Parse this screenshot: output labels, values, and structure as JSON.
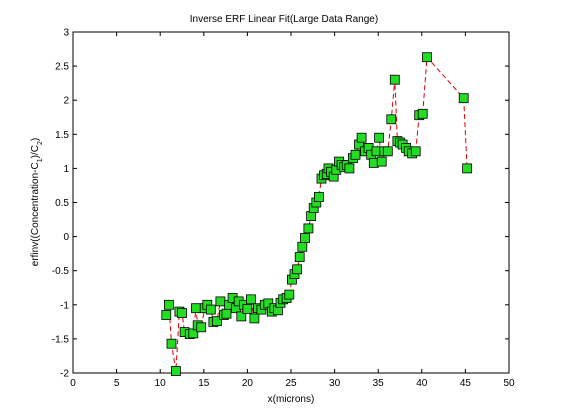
{
  "chart_data": {
    "type": "scatter",
    "title": "Inverse ERF Linear Fit(Large Data Range)",
    "xlabel": "x(microns)",
    "ylabel": "erfinv((Concentration-C",
    "ylabel_sub1": "1",
    "ylabel_mid": ")/C",
    "ylabel_sub2": "2",
    "ylabel_end": ")",
    "xlim": [
      0,
      50
    ],
    "ylim": [
      -2,
      3
    ],
    "xticks": [
      0,
      5,
      10,
      15,
      20,
      25,
      30,
      35,
      40,
      45,
      50
    ],
    "yticks": [
      -2,
      -1.5,
      -1,
      -0.5,
      0,
      0.5,
      1,
      1.5,
      2,
      2.5,
      3
    ],
    "ytick_labels": [
      "-2",
      "-1.5",
      "-1",
      "-0.5",
      "0",
      "0.5",
      "1",
      "1.5",
      "2",
      "2.5",
      "3"
    ],
    "grid": false,
    "colors": {
      "marker_fill": "#22dd22",
      "marker_edge": "#000000",
      "line": "#dd0000"
    },
    "series": [
      {
        "marker": "square",
        "line": "dashed",
        "points": [
          [
            10.7,
            -1.15
          ],
          [
            11.0,
            -1.0
          ],
          [
            11.3,
            -1.57
          ],
          [
            11.8,
            -1.97
          ],
          [
            12.2,
            -1.1
          ],
          [
            12.5,
            -1.12
          ],
          [
            12.8,
            -1.4
          ],
          [
            13.4,
            -1.43
          ],
          [
            13.8,
            -1.42
          ],
          [
            14.1,
            -1.05
          ],
          [
            14.3,
            -1.3
          ],
          [
            14.7,
            -1.33
          ],
          [
            15.1,
            -1.05
          ],
          [
            15.4,
            -1.0
          ],
          [
            15.8,
            -1.07
          ],
          [
            16.1,
            -1.25
          ],
          [
            16.5,
            -1.24
          ],
          [
            16.9,
            -0.95
          ],
          [
            17.3,
            -1.15
          ],
          [
            17.6,
            -1.13
          ],
          [
            17.9,
            -1.0
          ],
          [
            18.3,
            -0.9
          ],
          [
            18.7,
            -1.05
          ],
          [
            19.0,
            -0.95
          ],
          [
            19.3,
            -1.17
          ],
          [
            19.6,
            -1.0
          ],
          [
            20.0,
            -1.06
          ],
          [
            20.4,
            -0.92
          ],
          [
            20.8,
            -1.2
          ],
          [
            21.2,
            -1.05
          ],
          [
            21.6,
            -1.07
          ],
          [
            22.0,
            -1.0
          ],
          [
            22.4,
            -0.98
          ],
          [
            22.8,
            -1.1
          ],
          [
            23.1,
            -1.05
          ],
          [
            23.5,
            -1.08
          ],
          [
            23.8,
            -0.97
          ],
          [
            24.1,
            -0.92
          ],
          [
            24.5,
            -0.9
          ],
          [
            24.8,
            -0.85
          ],
          [
            25.1,
            -0.63
          ],
          [
            25.4,
            -0.55
          ],
          [
            25.7,
            -0.48
          ],
          [
            26.0,
            -0.3
          ],
          [
            26.3,
            -0.15
          ],
          [
            26.6,
            -0.02
          ],
          [
            27.0,
            0.12
          ],
          [
            27.3,
            0.3
          ],
          [
            27.6,
            0.42
          ],
          [
            27.9,
            0.5
          ],
          [
            28.2,
            0.58
          ],
          [
            28.5,
            0.85
          ],
          [
            28.8,
            0.9
          ],
          [
            29.1,
            0.92
          ],
          [
            29.3,
            1.0
          ],
          [
            29.6,
            0.95
          ],
          [
            29.9,
            0.88
          ],
          [
            30.2,
            0.98
          ],
          [
            30.5,
            1.1
          ],
          [
            30.8,
            1.05
          ],
          [
            31.1,
            1.02
          ],
          [
            31.4,
            1.05
          ],
          [
            31.7,
            1.0
          ],
          [
            32.1,
            1.15
          ],
          [
            32.4,
            1.2
          ],
          [
            32.8,
            1.35
          ],
          [
            33.1,
            1.45
          ],
          [
            33.5,
            1.25
          ],
          [
            33.9,
            1.3
          ],
          [
            34.2,
            1.2
          ],
          [
            34.5,
            1.08
          ],
          [
            34.8,
            1.25
          ],
          [
            35.1,
            1.45
          ],
          [
            35.4,
            1.1
          ],
          [
            35.7,
            1.25
          ],
          [
            36.1,
            1.25
          ],
          [
            36.5,
            1.72
          ],
          [
            36.9,
            2.3
          ],
          [
            37.2,
            1.4
          ],
          [
            37.5,
            1.38
          ],
          [
            37.8,
            1.35
          ],
          [
            38.2,
            1.3
          ],
          [
            38.5,
            1.25
          ],
          [
            38.9,
            1.22
          ],
          [
            39.3,
            1.25
          ],
          [
            39.7,
            1.78
          ],
          [
            40.1,
            1.8
          ],
          [
            40.6,
            2.63
          ],
          [
            44.8,
            2.03
          ],
          [
            45.2,
            1.0
          ]
        ]
      }
    ]
  }
}
